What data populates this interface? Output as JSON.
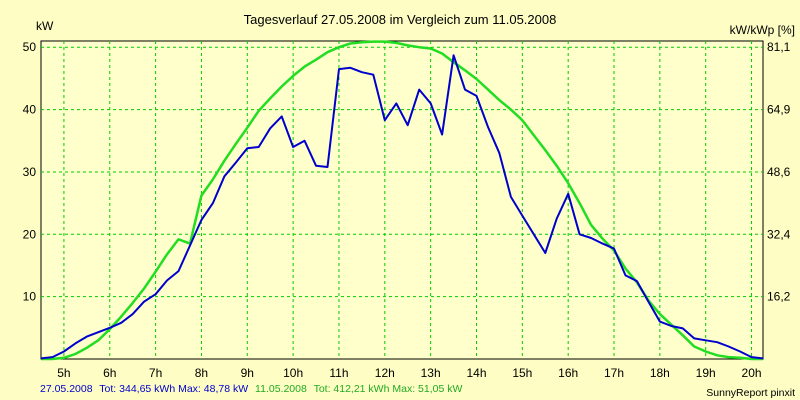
{
  "chart_data": {
    "type": "line",
    "title": "Tagesverlauf 27.05.2008 im Vergleich zum 11.05.2008",
    "ylabel_left": "kW",
    "ylabel_right": "kW/kWp [%]",
    "x_ticks": [
      "5h",
      "6h",
      "7h",
      "8h",
      "9h",
      "10h",
      "11h",
      "12h",
      "13h",
      "14h",
      "15h",
      "16h",
      "17h",
      "18h",
      "19h",
      "20h"
    ],
    "xlim": [
      4.5,
      20.25
    ],
    "ylim": [
      0,
      51
    ],
    "y_ticks_left": [
      "10",
      "20",
      "30",
      "40",
      "50"
    ],
    "y_ticks_right": [
      "16,2",
      "32,4",
      "48,6",
      "64,9",
      "81,1"
    ],
    "grid": true,
    "series": [
      {
        "name": "27.05.2008",
        "color": "#0000cc",
        "x": [
          4.5,
          4.75,
          5.0,
          5.25,
          5.5,
          5.75,
          6.0,
          6.25,
          6.5,
          6.75,
          7.0,
          7.25,
          7.5,
          7.75,
          8.0,
          8.25,
          8.5,
          8.75,
          9.0,
          9.25,
          9.5,
          9.75,
          10.0,
          10.25,
          10.5,
          10.75,
          11.0,
          11.25,
          11.5,
          11.75,
          12.0,
          12.25,
          12.5,
          12.75,
          13.0,
          13.25,
          13.5,
          13.75,
          14.0,
          14.25,
          14.5,
          14.75,
          15.0,
          15.25,
          15.5,
          15.75,
          16.0,
          16.25,
          16.5,
          16.75,
          17.0,
          17.25,
          17.5,
          17.75,
          18.0,
          18.25,
          18.5,
          18.75,
          19.0,
          19.25,
          19.5,
          19.75,
          20.0,
          20.25
        ],
        "y": [
          0.1,
          0.3,
          1.2,
          2.5,
          3.6,
          4.3,
          5.0,
          5.8,
          7.2,
          9.2,
          10.4,
          12.6,
          14.1,
          18.2,
          22.3,
          25.0,
          29.3,
          31.5,
          33.8,
          34.0,
          37.0,
          38.9,
          34.0,
          35.0,
          31.0,
          30.8,
          46.5,
          46.7,
          46.0,
          45.6,
          38.3,
          41.0,
          37.5,
          43.2,
          41.0,
          36.0,
          48.7,
          43.2,
          42.2,
          37.2,
          33.0,
          26.0,
          23.0,
          20.0,
          17.0,
          22.5,
          26.5,
          20.0,
          19.4,
          18.5,
          17.7,
          13.4,
          12.5,
          9.2,
          6.0,
          5.3,
          4.9,
          3.3,
          3.0,
          2.7,
          2.0,
          1.2,
          0.3,
          0.1
        ]
      },
      {
        "name": "11.05.2008",
        "color": "#22dd22",
        "x": [
          4.5,
          4.75,
          5.0,
          5.25,
          5.5,
          5.75,
          6.0,
          6.25,
          6.5,
          6.75,
          7.0,
          7.25,
          7.5,
          7.75,
          8.0,
          8.25,
          8.5,
          8.75,
          9.0,
          9.25,
          9.5,
          9.75,
          10.0,
          10.25,
          10.5,
          10.75,
          11.0,
          11.25,
          11.5,
          11.75,
          12.0,
          12.25,
          12.5,
          12.75,
          13.0,
          13.25,
          13.5,
          13.75,
          14.0,
          14.25,
          14.5,
          14.75,
          15.0,
          15.25,
          15.5,
          15.75,
          16.0,
          16.25,
          16.5,
          16.75,
          17.0,
          17.25,
          17.5,
          17.75,
          18.0,
          18.25,
          18.5,
          18.75,
          19.0,
          19.25,
          19.5,
          19.75,
          20.0,
          20.25
        ],
        "y": [
          0.0,
          0.0,
          0.2,
          0.8,
          1.8,
          3.0,
          4.8,
          6.8,
          9.0,
          11.3,
          14.0,
          16.8,
          19.2,
          18.5,
          26.2,
          28.8,
          31.8,
          34.5,
          37.1,
          39.8,
          41.8,
          43.7,
          45.4,
          46.9,
          48.0,
          49.2,
          50.0,
          50.6,
          50.8,
          50.9,
          50.9,
          50.7,
          50.3,
          50.0,
          49.8,
          49.0,
          47.6,
          46.3,
          44.9,
          43.2,
          41.5,
          40.0,
          38.3,
          35.9,
          33.5,
          31.0,
          28.2,
          25.0,
          21.5,
          19.3,
          17.4,
          14.5,
          12.3,
          9.4,
          7.2,
          5.5,
          3.8,
          2.0,
          1.2,
          0.6,
          0.3,
          0.2,
          0.0,
          0.0
        ]
      }
    ]
  },
  "footer": {
    "series1_label": "27.05.2008",
    "series1_stats": "Tot: 344,65 kWh Max: 48,78 kW",
    "series2_label": "11.05.2008",
    "series2_stats": "Tot: 412,21 kWh Max: 51,05 kW",
    "credit": "SunnyReport pinxit"
  }
}
